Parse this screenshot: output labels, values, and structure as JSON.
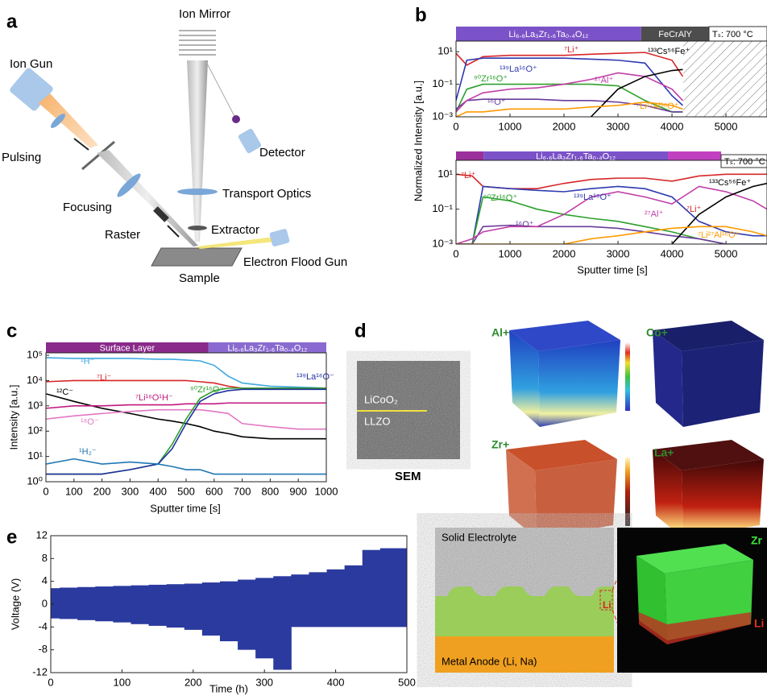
{
  "panel_labels": [
    "a",
    "b",
    "c",
    "d",
    "e"
  ],
  "schematic": {
    "ion_mirror": "Ion Mirror",
    "ion_gun": "Ion Gun",
    "pulsing": "Pulsing",
    "detector": "Detector",
    "focusing": "Focusing",
    "transport_optics": "Transport Optics",
    "raster": "Raster",
    "extractor": "Extractor",
    "sample": "Sample",
    "electron_flood_gun": "Electron Flood Gun"
  },
  "chart_data": [
    {
      "type": "line",
      "y_label": "Normalized Intensity [a.u.]",
      "log_y": true,
      "bands": [
        {
          "label": "Li₆.₆La₃Zr₁.₆Ta₀.₄O₁₂",
          "start": 0,
          "end": 3430,
          "color": "#7b52c8"
        },
        {
          "label": "FeCrAlY",
          "start": 3430,
          "end": 4690,
          "color": "#4d4d4d"
        }
      ],
      "annotation": "Tₛ: 700 °C",
      "hatch": [
        4210,
        5760
      ],
      "x": [
        0,
        200,
        500,
        1000,
        1500,
        2000,
        2500,
        3000,
        3500,
        4000,
        4200
      ],
      "xlim": [
        0,
        5760
      ],
      "xticks": [
        0,
        1000,
        2000,
        3000,
        4000,
        5000
      ],
      "ylim": [
        0.001,
        45
      ],
      "yticks": [
        {
          "value": 0.001,
          "label": "10⁻³"
        },
        {
          "value": 0.1,
          "label": "10⁻¹"
        },
        {
          "value": 10,
          "label": "10¹"
        }
      ],
      "series": [
        {
          "name": "⁷Li⁺",
          "color": "#d62728",
          "values": [
            8,
            1.5,
            5,
            6,
            6,
            6,
            7,
            8,
            9,
            3,
            0.3
          ]
        },
        {
          "name": "¹³⁹La¹⁶O⁺",
          "color": "#2e3ab0",
          "values": [
            0.01,
            3,
            4,
            4,
            4,
            4,
            3.5,
            3,
            2,
            0.02,
            0.005
          ]
        },
        {
          "name": "⁹⁰Zr¹⁶O⁺",
          "color": "#2ca02c",
          "values": [
            0.002,
            0.05,
            0.1,
            0.1,
            0.1,
            0.1,
            0.1,
            0.08,
            0.01,
            0.002,
            0.002
          ]
        },
        {
          "name": "¹⁶O⁺",
          "color": "#6a3d9a",
          "values": [
            0.003,
            0.01,
            0.012,
            0.012,
            0.012,
            0.01,
            0.01,
            0.008,
            0.005,
            0.002,
            0.002
          ]
        },
        {
          "name": "²⁷Al⁺",
          "color": "#c13fa8",
          "values": [
            0.002,
            0.01,
            0.03,
            0.05,
            0.06,
            0.1,
            0.2,
            0.5,
            0.3,
            0.05,
            0.01
          ]
        },
        {
          "name": "¹³³Cs⁵⁶Fe⁺",
          "color": "#000000",
          "values": [
            null,
            null,
            null,
            null,
            null,
            null,
            0.001,
            0.05,
            0.3,
            0.7,
            0.8
          ]
        },
        {
          "name": "⁷Li²⁷Al¹⁶O⁺",
          "color": "#ff9900",
          "values": [
            0.001,
            0.002,
            0.002,
            0.003,
            0.003,
            0.003,
            0.004,
            0.005,
            0.008,
            0.005,
            0.003
          ]
        }
      ]
    },
    {
      "type": "line",
      "x_label": "Sputter time [s]",
      "log_y": true,
      "bands": [
        {
          "start": 0,
          "end": 510,
          "color": "#9b2f9b"
        },
        {
          "label": "Li₆.₆La₃Zr₁.₆Ta₀.₄O₁₂",
          "start": 510,
          "end": 3925,
          "color": "#7b52c8"
        },
        {
          "start": 3925,
          "end": 4910,
          "color": "#c040c0"
        }
      ],
      "annotation": "Tₛ: 700 °C",
      "x": [
        0,
        300,
        500,
        1000,
        1500,
        2000,
        2500,
        3000,
        3500,
        4000,
        4500,
        5000,
        5500,
        5760
      ],
      "xlim": [
        0,
        5760
      ],
      "xticks": [
        0,
        1000,
        2000,
        3000,
        4000,
        5000
      ],
      "ylim": [
        0.001,
        63
      ],
      "yticks": [
        {
          "value": 0.001,
          "label": "10⁻³"
        },
        {
          "value": 0.1,
          "label": "10⁻¹"
        },
        {
          "value": 10,
          "label": "10¹"
        }
      ],
      "series": [
        {
          "name": "⁷Li⁺",
          "color": "#d62728",
          "values": [
            10,
            8,
            2,
            1.5,
            1.5,
            3,
            5,
            6,
            6,
            4,
            8,
            10,
            10,
            10
          ]
        },
        {
          "name": "¹³⁹La¹⁶O⁺",
          "color": "#2e3ab0",
          "values": [
            0.001,
            0.001,
            2,
            1.5,
            1.2,
            1,
            1.5,
            2,
            1.5,
            0.5,
            0.02,
            0.005,
            0.003,
            0.003
          ]
        },
        {
          "name": "⁹⁰Zr¹⁶O⁺",
          "color": "#2ca02c",
          "values": [
            0.001,
            0.001,
            0.5,
            0.3,
            0.1,
            0.05,
            0.03,
            0.02,
            0.01,
            0.005,
            0.002,
            0.001,
            0.001,
            0.001
          ]
        },
        {
          "name": "¹⁶O⁺",
          "color": "#6a3d9a",
          "values": [
            0.001,
            0.001,
            0.01,
            0.012,
            0.01,
            0.01,
            0.01,
            0.008,
            0.005,
            0.003,
            0.002,
            0.001,
            0.001,
            0.001
          ]
        },
        {
          "name": "²⁷Al⁺",
          "color": "#c13fa8",
          "values": [
            0.001,
            0.002,
            0.005,
            0.01,
            0.01,
            0.05,
            0.5,
            1,
            0.5,
            0.2,
            2,
            1,
            0.3,
            0.1
          ]
        },
        {
          "name": "¹³³Cs⁵⁶Fe⁺",
          "color": "#000000",
          "values": [
            null,
            null,
            null,
            null,
            null,
            null,
            null,
            null,
            null,
            0.001,
            0.05,
            0.5,
            2,
            3
          ]
        },
        {
          "name": "⁷Li²⁷Al¹⁶O⁺",
          "color": "#ff9900",
          "values": [
            0.001,
            0.001,
            0.001,
            0.001,
            0.001,
            0.001,
            0.002,
            0.003,
            0.005,
            0.008,
            0.01,
            0.01,
            0.005,
            0.003
          ]
        }
      ]
    },
    {
      "type": "line",
      "x_label": "Sputter time [s]",
      "y_label": "Intensity [a.u.]",
      "log_y": true,
      "bands": [
        {
          "label": "Surface Layer",
          "start": 0,
          "end": 580,
          "color": "#8a2a8a"
        },
        {
          "label": "Li₆.₆La₃Zr₁.₆Ta₀.₄O₁₂",
          "start": 580,
          "end": 1000,
          "color": "#8a6ad0"
        }
      ],
      "x": [
        0,
        100,
        200,
        300,
        400,
        450,
        500,
        550,
        600,
        650,
        700,
        800,
        900,
        1000
      ],
      "xlim": [
        0,
        1000
      ],
      "xticks": [
        0,
        100,
        200,
        300,
        400,
        500,
        600,
        700,
        800,
        900,
        1000
      ],
      "ylim": [
        1,
        125000
      ],
      "yticks": [
        {
          "value": 1,
          "label": "10⁰"
        },
        {
          "value": 10,
          "label": "10¹"
        },
        {
          "value": 100,
          "label": "10²"
        },
        {
          "value": 1000,
          "label": "10³"
        },
        {
          "value": 10000,
          "label": "10⁴"
        },
        {
          "value": 100000,
          "label": "10⁵"
        }
      ],
      "series": [
        {
          "name": "¹H⁻",
          "color": "#3fa9e0",
          "values": [
            80000,
            75000,
            75000,
            75000,
            70000,
            70000,
            65000,
            60000,
            40000,
            15000,
            8000,
            6000,
            5500,
            5000
          ]
        },
        {
          "name": "⁷Li⁻",
          "color": "#d62728",
          "values": [
            9000,
            10000,
            10000,
            10000,
            10000,
            10000,
            10000,
            9000,
            8000,
            6000,
            5000,
            5000,
            5000,
            5000
          ]
        },
        {
          "name": "¹²C⁻",
          "color": "#000000",
          "values": [
            3000,
            1500,
            800,
            500,
            300,
            250,
            200,
            150,
            100,
            80,
            60,
            50,
            50,
            50
          ]
        },
        {
          "name": "⁷Li¹⁶O¹H⁻",
          "color": "#c2187f",
          "values": [
            800,
            1000,
            1000,
            1100,
            1100,
            1100,
            1200,
            1200,
            1200,
            1300,
            1300,
            1300,
            1300,
            1300
          ]
        },
        {
          "name": "¹⁸O⁻",
          "color": "#e377c2",
          "values": [
            300,
            400,
            500,
            600,
            700,
            700,
            700,
            700,
            600,
            500,
            200,
            150,
            120,
            120
          ]
        },
        {
          "name": "⁹⁰Zr¹⁶O⁻",
          "color": "#2ca02c",
          "values": [
            2,
            2,
            2,
            3,
            5,
            30,
            300,
            2000,
            4000,
            5000,
            5000,
            5000,
            5000,
            5000
          ]
        },
        {
          "name": "¹³⁹La¹⁶O⁻",
          "color": "#1f2f9f",
          "values": [
            2,
            2,
            2,
            3,
            5,
            20,
            200,
            1500,
            3000,
            4000,
            4500,
            4500,
            4500,
            4500
          ]
        },
        {
          "name": "¹H₂⁻",
          "color": "#1f77b4",
          "values": [
            5,
            8,
            5,
            6,
            5,
            4,
            3,
            3,
            2,
            2,
            2,
            2,
            2,
            2
          ]
        }
      ]
    },
    {
      "type": "range",
      "x_label": "Time (h)",
      "y_label": "Voltage (V)",
      "x": [
        0,
        25,
        50,
        75,
        100,
        125,
        150,
        175,
        200,
        225,
        250,
        275,
        300,
        325,
        350,
        375,
        400,
        425,
        450,
        475,
        500
      ],
      "xlim": [
        0,
        500
      ],
      "xticks": [
        0,
        100,
        200,
        300,
        400,
        500
      ],
      "ylim": [
        -12,
        12
      ],
      "yticks": [
        -12,
        -8,
        -4,
        0,
        4,
        8,
        12
      ],
      "series": [
        {
          "color": "#2b3a9e",
          "values": [
            2.8,
            2.9,
            3,
            3.1,
            3.2,
            3.3,
            3.4,
            3.5,
            3.6,
            3.8,
            4,
            4.3,
            4.6,
            4.9,
            5.2,
            5.6,
            6.1,
            6.8,
            9.5,
            9.8,
            9.8
          ]
        },
        {
          "color": "#2b3a9e",
          "values": [
            -2.5,
            -2.6,
            -2.8,
            -3,
            -3.2,
            -3.5,
            -3.8,
            -4.1,
            -4.5,
            -5.5,
            -6.5,
            -8,
            -9.5,
            -11.5,
            -4,
            -4,
            -4,
            -4,
            -4,
            -4,
            -4
          ]
        }
      ]
    }
  ],
  "panel_d": {
    "sem_top": "LiCoO₂",
    "sem_bottom": "LLZO",
    "sem_caption": "SEM",
    "maps": [
      "Al+",
      "Co+",
      "Zr+",
      "La+"
    ]
  },
  "panel_e_schematic": {
    "solid_electrolyte": "Solid Electrolyte",
    "metal_anode": "Metal Anode (Li, Na)",
    "interface": "Li",
    "map_top": "Zr",
    "map_bottom": "Li"
  }
}
